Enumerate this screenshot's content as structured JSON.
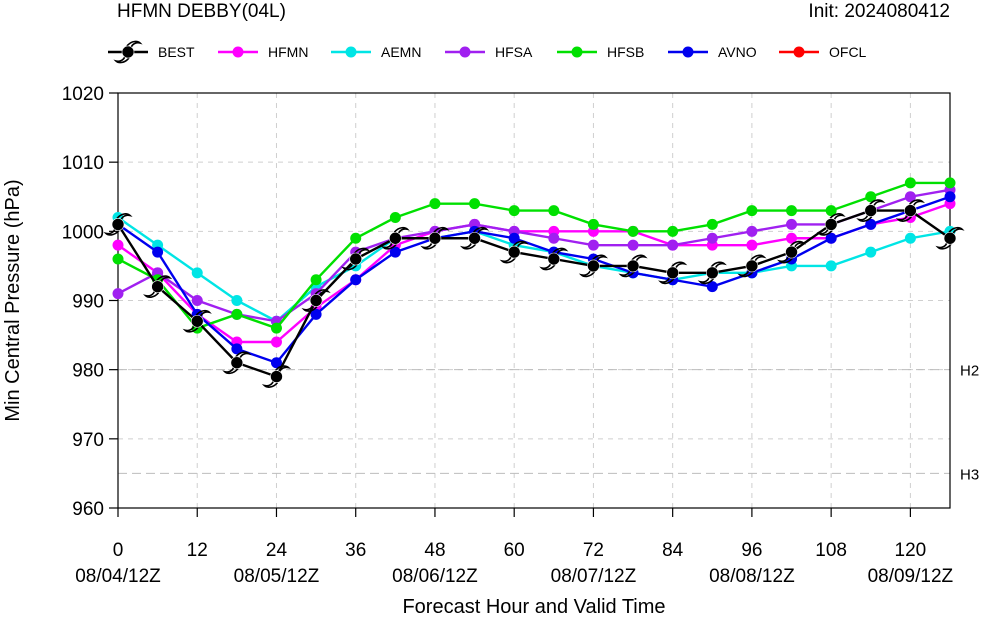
{
  "header": {
    "title": "HFMN DEBBY(04L)",
    "init": "Init: 2024080412"
  },
  "chart_data": {
    "type": "line",
    "title": "HFMN DEBBY(04L)",
    "xlabel": "Forecast Hour and Valid Time",
    "ylabel": "Min Central Pressure (hPa)",
    "xlim": [
      0,
      126
    ],
    "ylim": [
      960,
      1020
    ],
    "x_ticks": [
      0,
      12,
      24,
      36,
      48,
      60,
      72,
      84,
      96,
      108,
      120
    ],
    "x_tick_dates": [
      "08/04/12Z",
      "",
      "08/05/12Z",
      "",
      "08/06/12Z",
      "",
      "08/07/12Z",
      "",
      "08/08/12Z",
      "",
      "08/09/12Z"
    ],
    "y_ticks": [
      960,
      970,
      980,
      990,
      1000,
      1010,
      1020
    ],
    "grid": true,
    "legend_position": "top",
    "reference_lines": [
      {
        "label": "H2",
        "value": 980
      },
      {
        "label": "H3",
        "value": 965
      }
    ],
    "series": [
      {
        "name": "BEST",
        "color": "#000000",
        "marker": "hurricane",
        "x": [
          0,
          6,
          12,
          18,
          24,
          30,
          36,
          42,
          48,
          54,
          60,
          66,
          72,
          78,
          84,
          90,
          96,
          102,
          108,
          114,
          120,
          126
        ],
        "y": [
          1001,
          992,
          987,
          981,
          979,
          990,
          996,
          999,
          999,
          999,
          997,
          996,
          995,
          995,
          994,
          994,
          995,
          997,
          1001,
          1003,
          1003,
          999
        ]
      },
      {
        "name": "HFMN",
        "color": "#ff00ff",
        "marker": "circle",
        "x": [
          0,
          6,
          12,
          18,
          24,
          30,
          36,
          42,
          48,
          54,
          60,
          66,
          72,
          78,
          84,
          90,
          96,
          102,
          108,
          114,
          120,
          126
        ],
        "y": [
          998,
          994,
          988,
          984,
          984,
          989,
          993,
          998,
          1000,
          1001,
          1000,
          1000,
          1000,
          1000,
          998,
          998,
          998,
          999,
          999,
          1001,
          1002,
          1004
        ]
      },
      {
        "name": "AEMN",
        "color": "#00e5e5",
        "marker": "circle",
        "x": [
          0,
          6,
          12,
          18,
          24,
          30,
          36,
          42,
          48,
          54,
          60,
          66,
          72,
          78,
          84,
          90,
          96,
          102,
          108,
          114,
          120,
          126
        ],
        "y": [
          1002,
          998,
          994,
          990,
          987,
          992,
          995,
          999,
          999,
          1000,
          998,
          997,
          995,
          994,
          993,
          994,
          994,
          995,
          995,
          997,
          999,
          1000
        ]
      },
      {
        "name": "HFSA",
        "color": "#a020f0",
        "marker": "circle",
        "x": [
          0,
          6,
          12,
          18,
          24,
          30,
          36,
          42,
          48,
          54,
          60,
          66,
          72,
          78,
          84,
          90,
          96,
          102,
          108,
          114,
          120,
          126
        ],
        "y": [
          991,
          994,
          990,
          988,
          987,
          991,
          997,
          999,
          1000,
          1001,
          1000,
          999,
          998,
          998,
          998,
          999,
          1000,
          1001,
          1001,
          1003,
          1005,
          1006
        ]
      },
      {
        "name": "HFSB",
        "color": "#00e000",
        "marker": "circle",
        "x": [
          0,
          6,
          12,
          18,
          24,
          30,
          36,
          42,
          48,
          54,
          60,
          66,
          72,
          78,
          84,
          90,
          96,
          102,
          108,
          114,
          120,
          126
        ],
        "y": [
          996,
          993,
          986,
          988,
          986,
          993,
          999,
          1002,
          1004,
          1004,
          1003,
          1003,
          1001,
          1000,
          1000,
          1001,
          1003,
          1003,
          1003,
          1005,
          1007,
          1007
        ]
      },
      {
        "name": "AVNO",
        "color": "#0000ee",
        "marker": "circle",
        "x": [
          0,
          6,
          12,
          18,
          24,
          30,
          36,
          42,
          48,
          54,
          60,
          66,
          72,
          78,
          84,
          90,
          96,
          102,
          108,
          114,
          120,
          126
        ],
        "y": [
          1001,
          997,
          988,
          983,
          981,
          988,
          993,
          997,
          999,
          1000,
          999,
          997,
          996,
          994,
          993,
          992,
          994,
          996,
          999,
          1001,
          1003,
          1005
        ]
      },
      {
        "name": "OFCL",
        "color": "#ff0000",
        "marker": "circle",
        "x": [],
        "y": []
      }
    ]
  }
}
